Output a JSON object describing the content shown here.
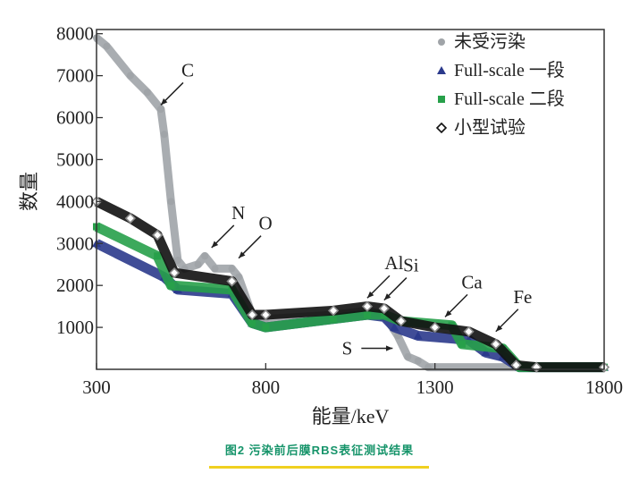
{
  "chart_data": {
    "type": "scatter",
    "xlabel": "能量/keV",
    "ylabel": "数量",
    "xlim": [
      300,
      1800
    ],
    "ylim": [
      0,
      8100
    ],
    "xticks": [
      300,
      800,
      1300,
      1800
    ],
    "yticks": [
      1000,
      2000,
      3000,
      4000,
      5000,
      6000,
      7000,
      8000
    ],
    "grid": false,
    "legend_position": "top-right",
    "series": [
      {
        "name": "未受污染",
        "marker": "circle",
        "color": "#a0a4a8",
        "x": [
          300,
          330,
          400,
          450,
          490,
          500,
          520,
          540,
          560,
          600,
          620,
          650,
          700,
          720,
          760,
          800,
          1000,
          1100,
          1150,
          1190,
          1220,
          1250,
          1280,
          1800
        ],
        "y": [
          7900,
          7700,
          7000,
          6600,
          6200,
          5600,
          4000,
          2600,
          2400,
          2500,
          2700,
          2400,
          2400,
          2200,
          1300,
          1200,
          1300,
          1400,
          1300,
          800,
          300,
          200,
          50,
          50
        ]
      },
      {
        "name": "Full-scale 一段",
        "marker": "triangle",
        "color": "#2b3a8c",
        "x": [
          300,
          500,
          540,
          700,
          760,
          800,
          1000,
          1100,
          1150,
          1180,
          1250,
          1400,
          1450,
          1500,
          1550,
          1800
        ],
        "y": [
          3000,
          2200,
          1900,
          1800,
          1100,
          1000,
          1200,
          1300,
          1250,
          1000,
          800,
          700,
          400,
          300,
          50,
          50
        ]
      },
      {
        "name": "Full-scale 二段",
        "marker": "square",
        "color": "#27a04a",
        "x": [
          300,
          480,
          520,
          700,
          760,
          800,
          1000,
          1100,
          1150,
          1200,
          1350,
          1380,
          1500,
          1550,
          1800
        ],
        "y": [
          3400,
          2700,
          2000,
          1900,
          1100,
          1000,
          1200,
          1300,
          1300,
          1150,
          1050,
          600,
          500,
          50,
          50
        ]
      },
      {
        "name": "小型试验",
        "marker": "diamond-open",
        "color": "#111111",
        "x": [
          300,
          400,
          480,
          530,
          700,
          760,
          800,
          1000,
          1100,
          1150,
          1200,
          1300,
          1400,
          1480,
          1540,
          1600,
          1800
        ],
        "y": [
          4000,
          3600,
          3200,
          2300,
          2100,
          1300,
          1300,
          1400,
          1500,
          1450,
          1150,
          1000,
          900,
          600,
          100,
          50,
          50
        ]
      }
    ],
    "annotations": [
      {
        "text": "C",
        "x": 490,
        "y": 6300
      },
      {
        "text": "N",
        "x": 640,
        "y": 2900
      },
      {
        "text": "O",
        "x": 720,
        "y": 2650
      },
      {
        "text": "Al",
        "x": 1100,
        "y": 1700
      },
      {
        "text": "Si",
        "x": 1150,
        "y": 1650
      },
      {
        "text": "Ca",
        "x": 1330,
        "y": 1250
      },
      {
        "text": "Fe",
        "x": 1480,
        "y": 900
      },
      {
        "text": "S",
        "x": 1175,
        "y": 500
      }
    ]
  },
  "caption": "图2  污染前后膜RBS表征测试结果"
}
